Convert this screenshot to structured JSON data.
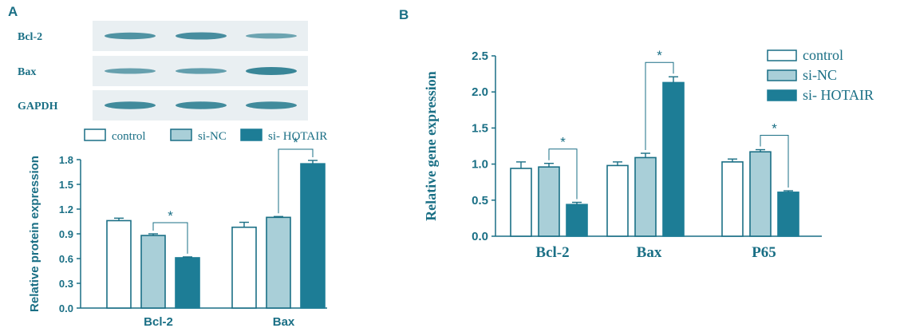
{
  "figure": {
    "panel_a_letter": "A",
    "panel_b_letter": "B",
    "blot": {
      "rows": [
        {
          "label": "Bcl-2",
          "bands": [
            0.75,
            0.85,
            0.45
          ]
        },
        {
          "label": "Bax",
          "bands": [
            0.5,
            0.55,
            1.0
          ]
        },
        {
          "label": "GAPDH",
          "bands": [
            0.9,
            0.9,
            0.9
          ]
        }
      ]
    }
  },
  "colors": {
    "axis": "#1a6f85",
    "control": "#ffffff",
    "si_nc": "#a9cfd8",
    "si_hotair": "#1d7d96",
    "blot_bg": "#e9eff2",
    "band": "#2f7f92"
  },
  "chart_data": [
    {
      "type": "bar",
      "panel": "A",
      "categories": [
        "Bcl-2",
        "Bax"
      ],
      "series": [
        {
          "name": "control",
          "values": [
            1.06,
            0.98
          ],
          "errors": [
            0.03,
            0.06
          ]
        },
        {
          "name": "si-NC",
          "values": [
            0.88,
            1.1
          ],
          "errors": [
            0.02,
            0.01
          ]
        },
        {
          "name": "si- HOTAIR",
          "values": [
            0.61,
            1.75
          ],
          "errors": [
            0.01,
            0.04
          ]
        }
      ],
      "ylabel": "Relative protein expression",
      "xlabel": "",
      "ylim": [
        0.0,
        1.8
      ],
      "yticks": [
        "0.0",
        "0.3",
        "0.6",
        "0.9",
        "1.2",
        "1.5",
        "1.8"
      ],
      "significance": [
        {
          "category": 0,
          "from": "si-NC",
          "to": "si- HOTAIR",
          "label": "*"
        },
        {
          "category": 1,
          "from": "si-NC",
          "to": "si- HOTAIR",
          "label": "*"
        }
      ],
      "legend": {
        "position": "top",
        "labels": [
          "control",
          "si-NC",
          "si- HOTAIR"
        ]
      }
    },
    {
      "type": "bar",
      "panel": "B",
      "categories": [
        "Bcl-2",
        "Bax",
        "P65"
      ],
      "series": [
        {
          "name": "control",
          "values": [
            0.94,
            0.98,
            1.03
          ],
          "errors": [
            0.09,
            0.05,
            0.04
          ]
        },
        {
          "name": "si-NC",
          "values": [
            0.96,
            1.09,
            1.17
          ],
          "errors": [
            0.05,
            0.06,
            0.03
          ]
        },
        {
          "name": "si- HOTAIR",
          "values": [
            0.44,
            2.13,
            0.61
          ],
          "errors": [
            0.03,
            0.08,
            0.02
          ]
        }
      ],
      "ylabel": "Relative gene expression",
      "xlabel": "",
      "ylim": [
        0.0,
        2.5
      ],
      "yticks": [
        "0.0",
        "0.5",
        "1.0",
        "1.5",
        "2.0",
        "2.5"
      ],
      "significance": [
        {
          "category": 0,
          "from": "si-NC",
          "to": "si- HOTAIR",
          "label": "*"
        },
        {
          "category": 1,
          "from": "si-NC",
          "to": "si- HOTAIR",
          "label": "*"
        },
        {
          "category": 2,
          "from": "si-NC",
          "to": "si- HOTAIR",
          "label": "*"
        }
      ],
      "legend": {
        "position": "top-right",
        "labels": [
          "control",
          "si-NC",
          "si- HOTAIR"
        ]
      }
    }
  ]
}
